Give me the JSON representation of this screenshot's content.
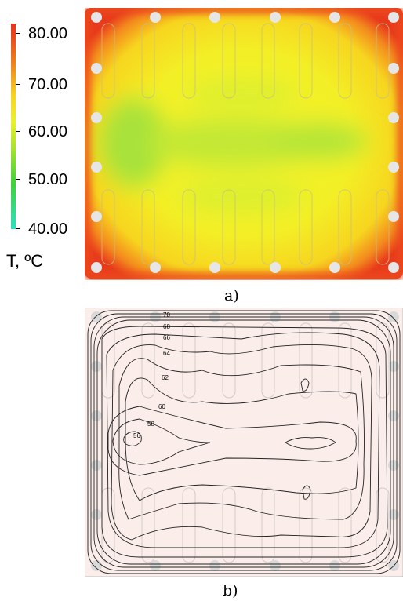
{
  "colorbar": {
    "ticks": [
      "80.00",
      "70.00",
      "60.00",
      "50.00",
      "40.00"
    ],
    "unit_label": "T, ºC",
    "colors": [
      "#e8301c",
      "#f07a1e",
      "#f6d51f",
      "#e9f22a",
      "#9fe12d",
      "#3dd23a",
      "#2fe0c2"
    ]
  },
  "panel_a": {
    "caption": "a)",
    "hot_color": "#e8301c",
    "mid_color": "#f2ee2a",
    "cool_color": "#9fe24a"
  },
  "panel_b": {
    "caption": "b)",
    "background_color": "#fbeeea",
    "contour_labels": [
      "70",
      "68",
      "66",
      "64",
      "62",
      "60",
      "58",
      "56"
    ]
  }
}
